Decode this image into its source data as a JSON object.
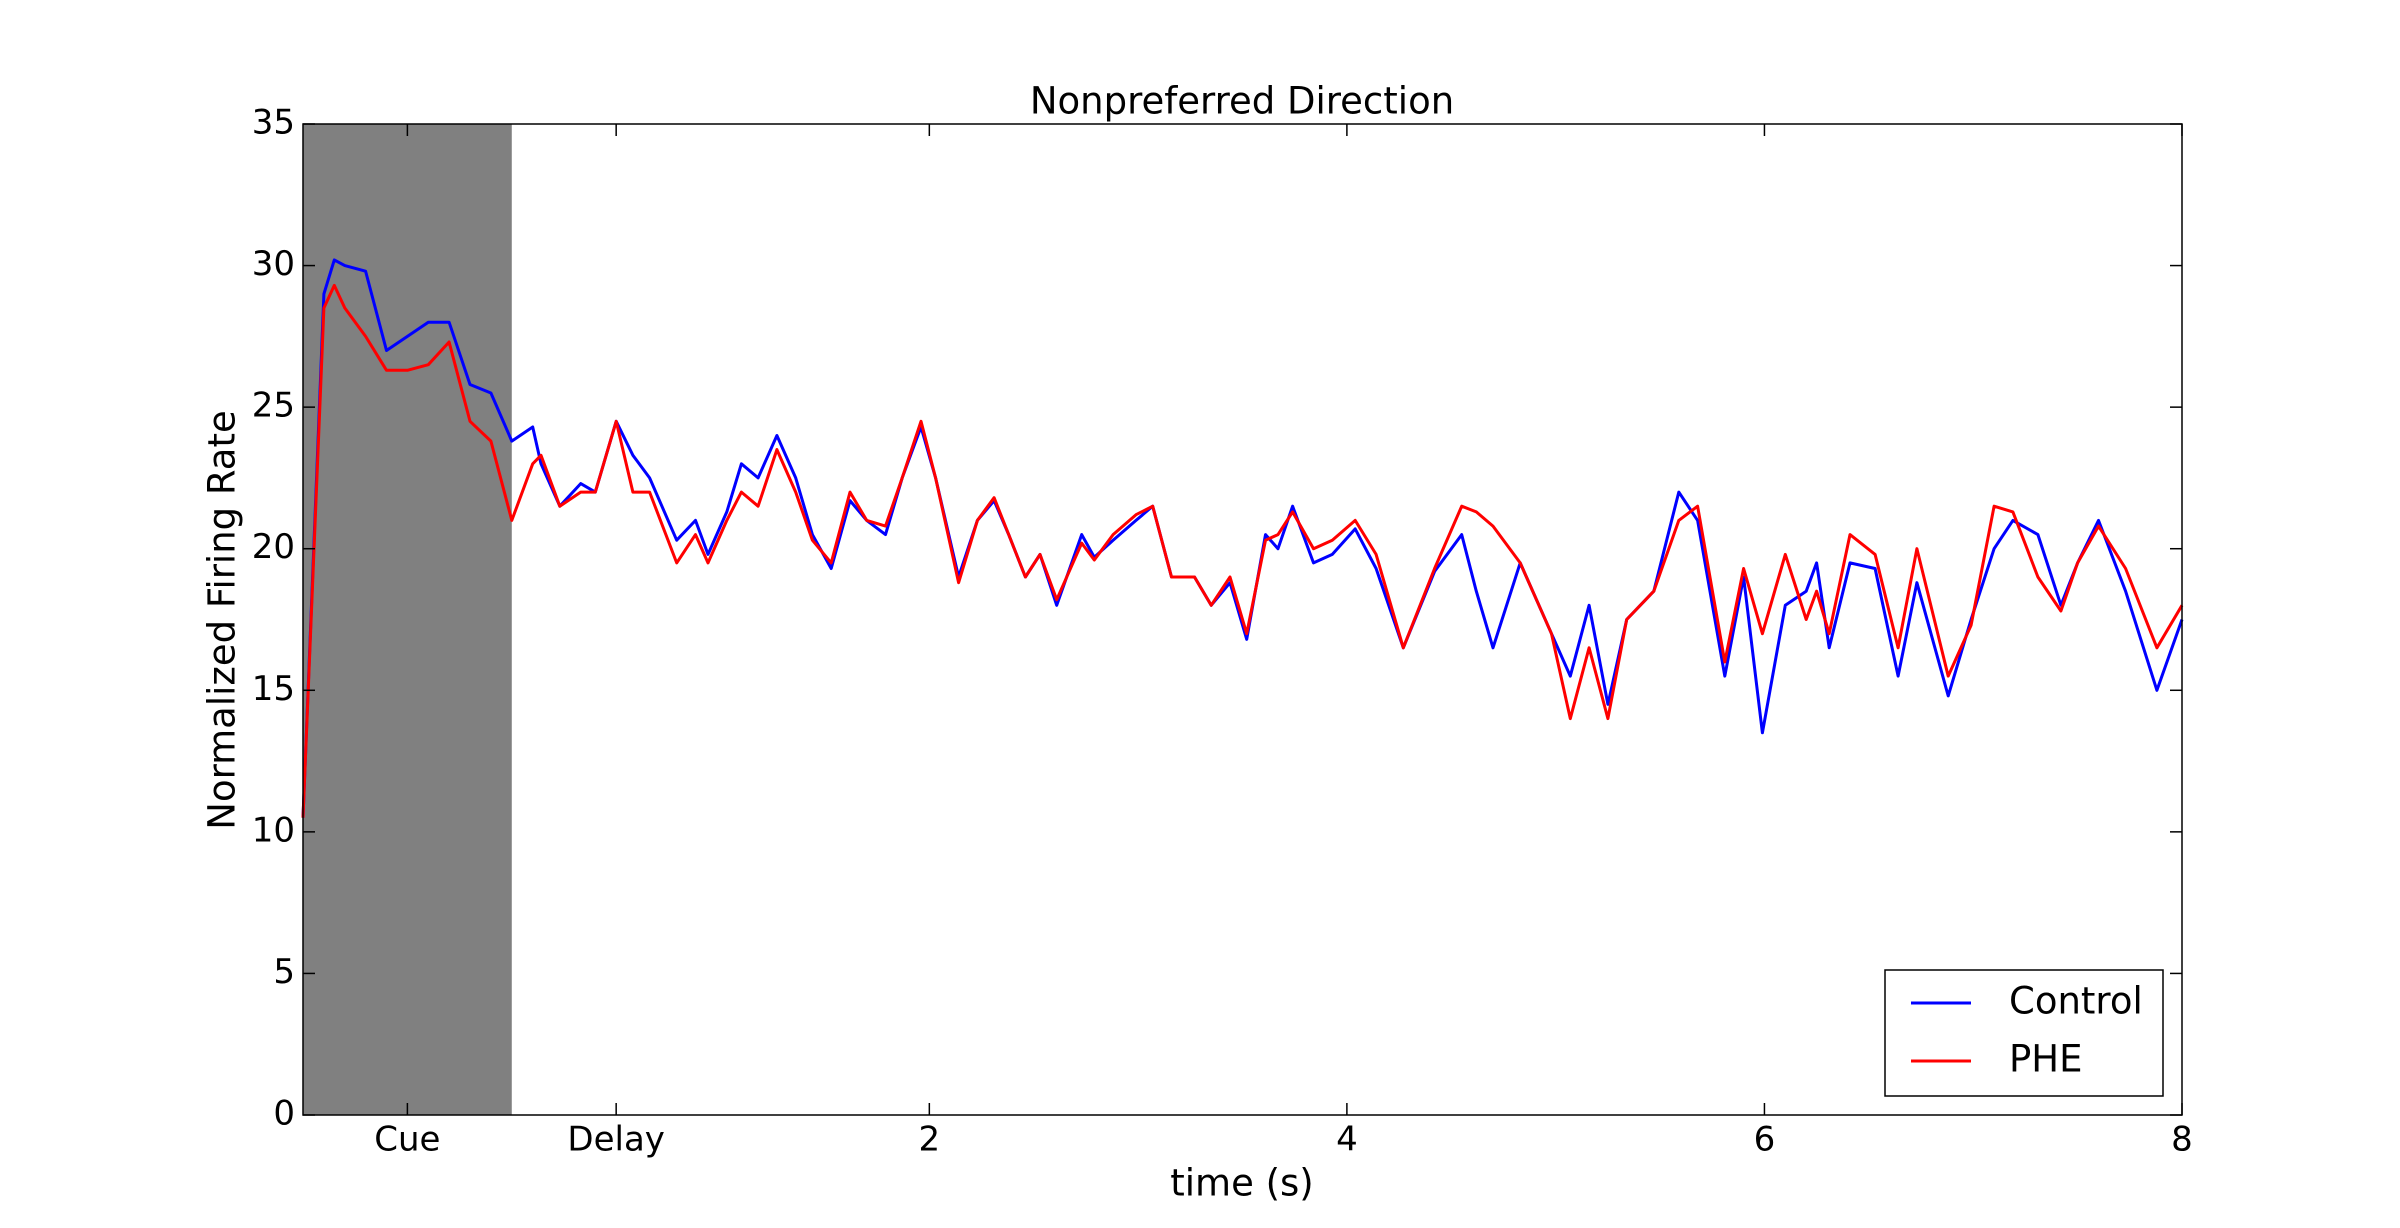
{
  "chart_data": {
    "type": "line",
    "title": "Nonpreferred Direction",
    "xlabel": "time (s)",
    "ylabel": "Normalized Firing Rate",
    "x": [
      -1.0,
      -0.9,
      -0.85,
      -0.8,
      -0.7,
      -0.6,
      -0.5,
      -0.4,
      -0.3,
      -0.2,
      -0.1,
      0.0,
      0.1,
      0.14,
      0.23,
      0.33,
      0.4,
      0.5,
      0.58,
      0.66,
      0.79,
      0.88,
      0.94,
      1.03,
      1.1,
      1.18,
      1.27,
      1.36,
      1.44,
      1.53,
      1.62,
      1.7,
      1.79,
      1.87,
      1.96,
      2.03,
      2.14,
      2.23,
      2.31,
      2.38,
      2.46,
      2.53,
      2.61,
      2.73,
      2.79,
      2.88,
      2.99,
      3.07,
      3.16,
      3.27,
      3.35,
      3.44,
      3.52,
      3.61,
      3.67,
      3.74,
      3.84,
      3.93,
      4.04,
      4.14,
      4.27,
      4.42,
      4.55,
      4.62,
      4.7,
      4.83,
      4.98,
      5.07,
      5.16,
      5.25,
      5.34,
      5.47,
      5.59,
      5.68,
      5.81,
      5.9,
      5.99,
      6.1,
      6.2,
      6.25,
      6.31,
      6.41,
      6.53,
      6.64,
      6.73,
      6.88,
      6.99,
      7.1,
      7.19,
      7.31,
      7.42,
      7.5,
      7.6,
      7.73,
      7.88,
      8.0
    ],
    "series": [
      {
        "name": "Control",
        "color": "#0000ff",
        "values": [
          10.5,
          29,
          30.2,
          30,
          29.8,
          27,
          27.5,
          28,
          28,
          25.8,
          25.5,
          23.8,
          24.3,
          23,
          21.5,
          22.3,
          22,
          24.5,
          23.3,
          22.5,
          20.3,
          21,
          19.8,
          21.3,
          23,
          22.5,
          24,
          22.5,
          20.5,
          19.3,
          21.7,
          21,
          20.5,
          22.5,
          24.3,
          22.5,
          19,
          21,
          21.7,
          20.5,
          19,
          19.8,
          18,
          20.5,
          19.7,
          20.3,
          21,
          21.5,
          19,
          19,
          18,
          18.8,
          16.8,
          20.5,
          20,
          21.5,
          19.5,
          19.8,
          20.7,
          19.3,
          16.5,
          19.2,
          20.5,
          18.5,
          16.5,
          19.5,
          17,
          15.5,
          18,
          14.5,
          17.5,
          18.5,
          22,
          21,
          15.5,
          19,
          13.5,
          18,
          18.5,
          19.5,
          16.5,
          19.5,
          19.3,
          15.5,
          18.8,
          14.8,
          17.5,
          20,
          21,
          20.5,
          18,
          19.5,
          21,
          18.5,
          15,
          17.5
        ]
      },
      {
        "name": "PHE",
        "color": "#ff0000",
        "values": [
          10.5,
          28.5,
          29.3,
          28.5,
          27.5,
          26.3,
          26.3,
          26.5,
          27.3,
          24.5,
          23.8,
          21,
          23,
          23.3,
          21.5,
          22,
          22,
          24.5,
          22,
          22,
          19.5,
          20.5,
          19.5,
          21,
          22,
          21.5,
          23.5,
          22,
          20.3,
          19.5,
          22,
          21,
          20.8,
          22.5,
          24.5,
          22.5,
          18.8,
          21,
          21.8,
          20.5,
          19,
          19.8,
          18.2,
          20.2,
          19.6,
          20.5,
          21.2,
          21.5,
          19,
          19,
          18,
          19,
          17,
          20.3,
          20.5,
          21.3,
          20,
          20.3,
          21,
          19.8,
          16.5,
          19.3,
          21.5,
          21.3,
          20.8,
          19.5,
          17,
          14,
          16.5,
          14,
          17.5,
          18.5,
          21,
          21.5,
          16,
          19.3,
          17,
          19.8,
          17.5,
          18.5,
          17,
          20.5,
          19.8,
          16.5,
          20,
          15.5,
          17.3,
          21.5,
          21.3,
          19,
          17.8,
          19.5,
          20.8,
          19.3,
          16.5,
          18
        ]
      }
    ],
    "shade": {
      "x": [
        -1,
        0
      ],
      "color": "#808080"
    },
    "xlim": [
      -1,
      8
    ],
    "xticks": [
      {
        "value": -0.5,
        "label": "Cue"
      },
      {
        "value": 0.5,
        "label": "Delay"
      },
      2,
      4,
      6,
      8
    ],
    "ylim": [
      0,
      35
    ],
    "yticks": [
      0,
      5,
      10,
      15,
      20,
      25,
      30,
      35
    ],
    "legend": "lower right"
  }
}
